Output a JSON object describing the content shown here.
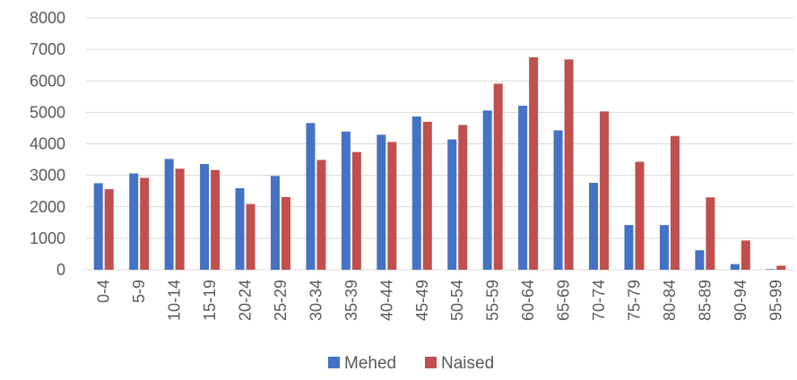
{
  "chart_data": {
    "type": "bar",
    "title": "",
    "xlabel": "",
    "ylabel": "",
    "ylim": [
      0,
      8000
    ],
    "yticks": [
      0,
      1000,
      2000,
      3000,
      4000,
      5000,
      6000,
      7000,
      8000
    ],
    "grid": true,
    "legend_position": "bottom",
    "categories": [
      "0-4",
      "5-9",
      "10-14",
      "15-19",
      "20-24",
      "25-29",
      "30-34",
      "35-39",
      "40-44",
      "45-49",
      "50-54",
      "55-59",
      "60-64",
      "65-69",
      "70-74",
      "75-79",
      "80-84",
      "85-89",
      "90-94",
      "95-99"
    ],
    "series": [
      {
        "name": "Mehed",
        "color": "#4472C4",
        "values": [
          2750,
          3060,
          3520,
          3360,
          2590,
          2980,
          4660,
          4390,
          4290,
          4870,
          4140,
          5060,
          5210,
          4430,
          2760,
          1420,
          1420,
          620,
          180,
          20
        ]
      },
      {
        "name": "Naised",
        "color": "#C0504D",
        "values": [
          2560,
          2920,
          3210,
          3170,
          2090,
          2310,
          3490,
          3740,
          4060,
          4700,
          4600,
          5910,
          6750,
          6680,
          5030,
          3430,
          4250,
          2300,
          930,
          130
        ]
      }
    ]
  }
}
